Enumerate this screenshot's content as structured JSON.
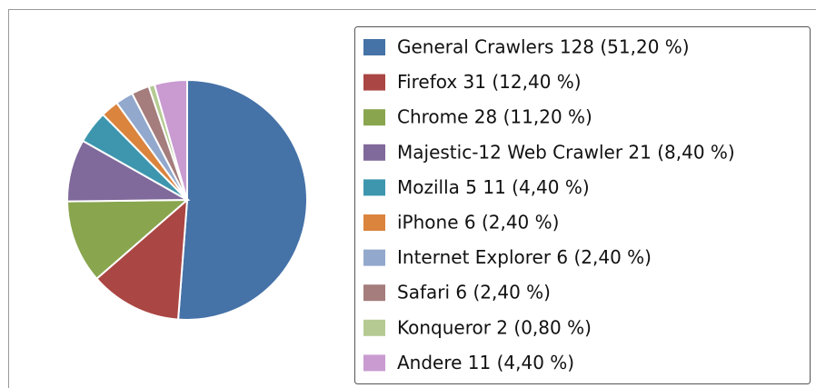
{
  "chart_data": {
    "type": "pie",
    "categories": [
      "General Crawlers 128 (51,20 %)",
      "Firefox 31 (12,40 %)",
      "Chrome 28 (11,20 %)",
      "Majestic-12 Web Crawler 21 (8,40 %)",
      "Mozilla 5 11 (4,40 %)",
      "iPhone 6 (2,40 %)",
      "Internet Explorer 6 (2,40 %)",
      "Safari 6 (2,40 %)",
      "Konqueror 2 (0,80 %)",
      "Andere 11 (4,40 %)"
    ],
    "values": [
      128,
      31,
      28,
      21,
      11,
      6,
      6,
      6,
      2,
      11
    ],
    "colors": [
      "#4572a7",
      "#aa4643",
      "#89a54e",
      "#80699b",
      "#3d96ae",
      "#db843d",
      "#92a8cd",
      "#a47d7c",
      "#b5ca92",
      "#c99bd1"
    ],
    "legend": "right"
  }
}
